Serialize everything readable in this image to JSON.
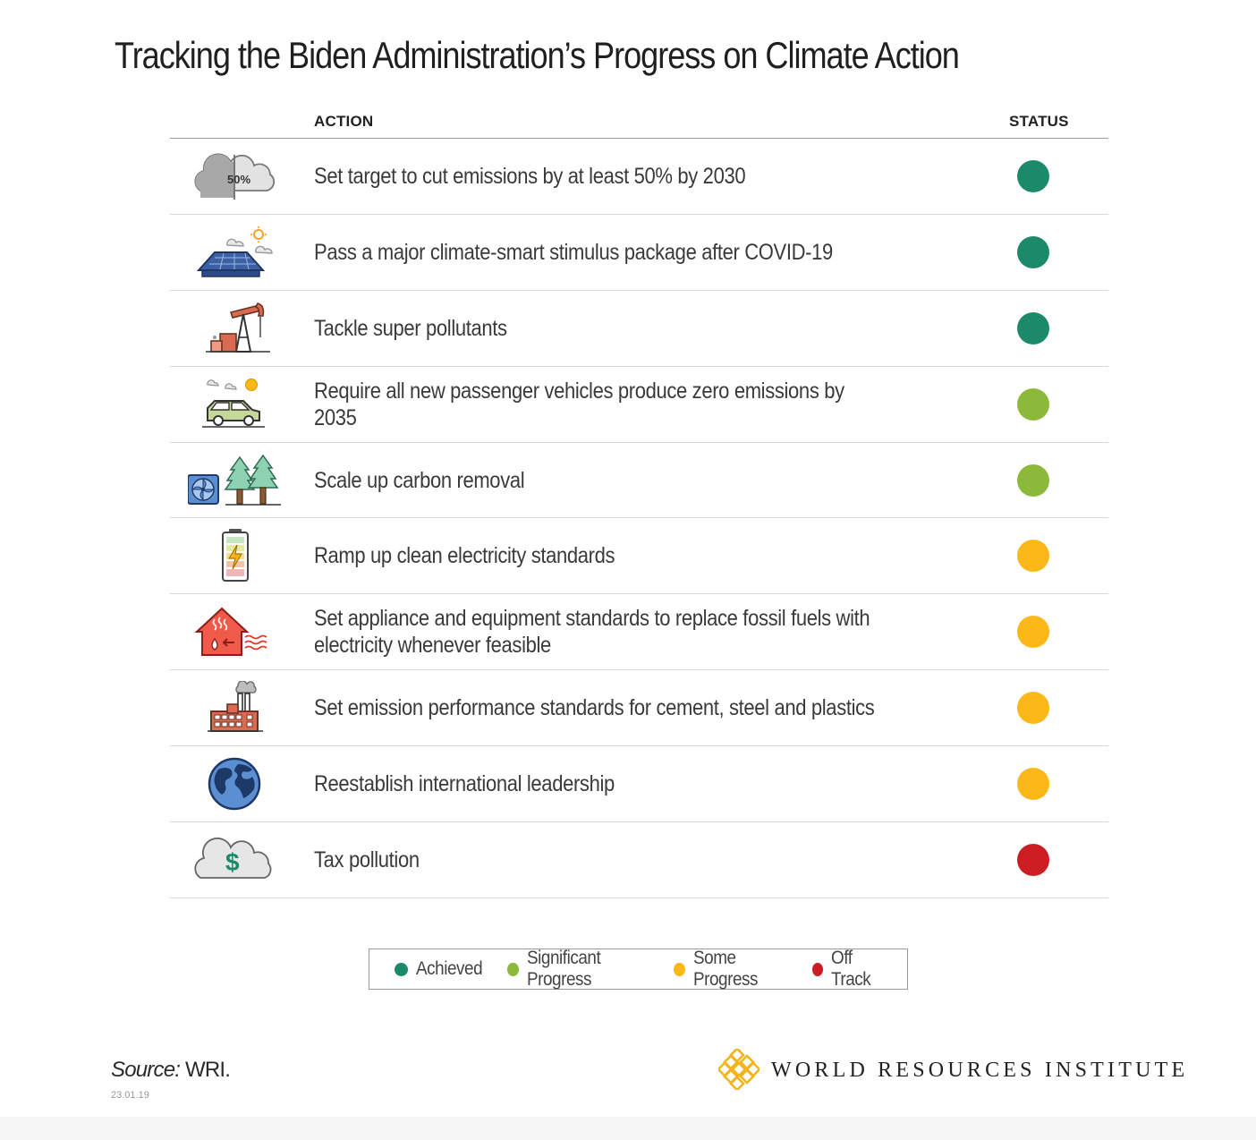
{
  "title": "Tracking the Biden Administration’s Progress on Climate Action",
  "headers": {
    "action": "ACTION",
    "status": "STATUS"
  },
  "status_colors": {
    "achieved": "#1b8a6b",
    "significant": "#8db93a",
    "some": "#fbb817",
    "off": "#cc1e22"
  },
  "rows": [
    {
      "icon": "cloud-50-percent-icon",
      "icon_text": "50%",
      "action": "Set target to cut emissions by at least 50% by 2030",
      "status": "achieved"
    },
    {
      "icon": "solar-roof-icon",
      "action": "Pass a major climate-smart stimulus package after COVID-19",
      "status": "achieved"
    },
    {
      "icon": "oil-pump-icon",
      "action": "Tackle super pollutants",
      "status": "achieved"
    },
    {
      "icon": "electric-car-icon",
      "action": "Require all new passenger vehicles produce zero emissions by 2035",
      "status": "significant"
    },
    {
      "icon": "fan-and-trees-icon",
      "action": "Scale up carbon removal",
      "status": "significant"
    },
    {
      "icon": "battery-icon",
      "action": "Ramp up clean electricity standards",
      "status": "some"
    },
    {
      "icon": "heated-house-icon",
      "action": "Set appliance and equipment standards to replace fossil fuels with electricity whenever feasible",
      "status": "some"
    },
    {
      "icon": "factory-icon",
      "action": "Set emission performance standards for cement, steel and plastics",
      "status": "some"
    },
    {
      "icon": "globe-icon",
      "action": "Reestablish international leadership",
      "status": "some"
    },
    {
      "icon": "cloud-dollar-icon",
      "icon_text": "$",
      "action": "Tax pollution",
      "status": "off"
    }
  ],
  "legend": [
    {
      "key": "achieved",
      "label": "Achieved"
    },
    {
      "key": "significant",
      "label": "Significant Progress"
    },
    {
      "key": "some",
      "label": "Some Progress"
    },
    {
      "key": "off",
      "label": "Off Track"
    }
  ],
  "source": {
    "label": "Source:",
    "text": " WRI."
  },
  "date": "23.01.19",
  "organization": "WORLD RESOURCES INSTITUTE",
  "logo_color": "#f2b51d"
}
